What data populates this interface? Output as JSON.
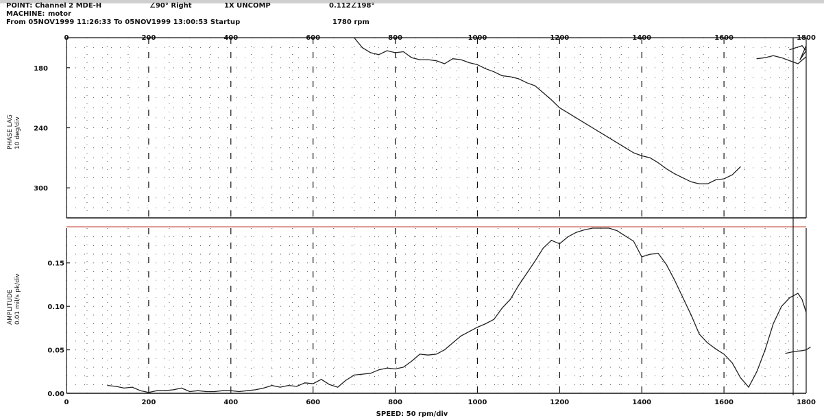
{
  "header": {
    "point_label": "POINT:",
    "point_value": "Channel 2 MDE-H",
    "angle": "∠90° Right",
    "mode": "1X UNCOMP",
    "vector": "0.112∠198°",
    "machine_label": "MACHINE:",
    "machine_value": "motor",
    "range": "From 05NOV1999 11:26:33 To 05NOV1999 13:00:53 Startup",
    "rpm": "1780 rpm"
  },
  "colors": {
    "grid": "#111111",
    "trace": "#222222",
    "panel_divider": "#c0392b",
    "frame": "#111111"
  },
  "chart_data": [
    {
      "type": "line",
      "panel": "phase",
      "ylabel": "PHASE LAG\n10 deg/div",
      "y_inverted": true,
      "ylim": [
        150,
        330
      ],
      "xlim": [
        0,
        1800
      ],
      "x_ticks": [
        "0",
        "200",
        "400",
        "600",
        "800",
        "1000",
        "1200",
        "1400",
        "1600",
        "1800"
      ],
      "y_ticks": [
        "180",
        "240",
        "300"
      ],
      "series": [
        {
          "points": [
            [
              700,
              150
            ],
            [
              720,
              160
            ],
            [
              740,
              165
            ],
            [
              760,
              167
            ],
            [
              780,
              163
            ],
            [
              800,
              165
            ],
            [
              820,
              164
            ],
            [
              840,
              170
            ],
            [
              860,
              172
            ],
            [
              880,
              172
            ],
            [
              900,
              173
            ],
            [
              920,
              176
            ],
            [
              940,
              171
            ],
            [
              960,
              172
            ],
            [
              980,
              175
            ],
            [
              1000,
              177
            ],
            [
              1020,
              181
            ],
            [
              1040,
              184
            ],
            [
              1060,
              188
            ],
            [
              1080,
              189
            ],
            [
              1100,
              191
            ],
            [
              1120,
              195
            ],
            [
              1140,
              198
            ],
            [
              1160,
              205
            ],
            [
              1180,
              212
            ],
            [
              1200,
              220
            ],
            [
              1220,
              225
            ],
            [
              1240,
              230
            ],
            [
              1260,
              235
            ],
            [
              1280,
              240
            ],
            [
              1300,
              245
            ],
            [
              1320,
              250
            ],
            [
              1340,
              255
            ],
            [
              1360,
              260
            ],
            [
              1380,
              265
            ],
            [
              1400,
              268
            ],
            [
              1420,
              270
            ],
            [
              1440,
              275
            ],
            [
              1460,
              281
            ],
            [
              1480,
              286
            ],
            [
              1500,
              290
            ],
            [
              1520,
              294
            ],
            [
              1540,
              296
            ],
            [
              1560,
              296
            ],
            [
              1580,
              292
            ],
            [
              1600,
              291
            ],
            [
              1620,
              287
            ],
            [
              1640,
              279
            ]
          ]
        },
        {
          "points": [
            [
              1680,
              171
            ],
            [
              1700,
              170
            ],
            [
              1720,
              168
            ],
            [
              1740,
              170
            ],
            [
              1760,
              173
            ],
            [
              1780,
              176
            ],
            [
              1800,
              169
            ]
          ]
        },
        {
          "points": [
            [
              1760,
              162
            ],
            [
              1790,
              158
            ],
            [
              1800,
              163
            ],
            [
              1785,
              172
            ],
            [
              1800,
              158
            ]
          ]
        }
      ]
    },
    {
      "type": "line",
      "panel": "amplitude",
      "ylabel": "AMPLITUDE\n0.01 mil/s pk/div",
      "ylim": [
        0,
        0.19
      ],
      "xlim": [
        0,
        1800
      ],
      "xlabel": "SPEED: 50 rpm/div",
      "x_ticks": [
        "0",
        "200",
        "400",
        "600",
        "800",
        "1000",
        "1200",
        "1400",
        "1600",
        "1800"
      ],
      "y_ticks": [
        "0.00",
        "0.05",
        "0.10",
        "0.15"
      ],
      "series": [
        {
          "points": [
            [
              100,
              0.009
            ],
            [
              120,
              0.008
            ],
            [
              140,
              0.006
            ],
            [
              160,
              0.007
            ],
            [
              180,
              0.003
            ],
            [
              200,
              0.001
            ],
            [
              220,
              0.003
            ],
            [
              240,
              0.003
            ],
            [
              260,
              0.004
            ],
            [
              280,
              0.006
            ],
            [
              300,
              0.002
            ],
            [
              320,
              0.003
            ],
            [
              340,
              0.002
            ],
            [
              360,
              0.002
            ],
            [
              380,
              0.003
            ],
            [
              400,
              0.003
            ],
            [
              420,
              0.002
            ],
            [
              440,
              0.003
            ],
            [
              460,
              0.004
            ],
            [
              480,
              0.006
            ],
            [
              500,
              0.009
            ],
            [
              520,
              0.007
            ],
            [
              540,
              0.009
            ],
            [
              560,
              0.008
            ],
            [
              580,
              0.012
            ],
            [
              600,
              0.011
            ],
            [
              620,
              0.016
            ],
            [
              640,
              0.01
            ],
            [
              660,
              0.007
            ],
            [
              680,
              0.015
            ],
            [
              700,
              0.021
            ],
            [
              720,
              0.022
            ],
            [
              740,
              0.023
            ],
            [
              760,
              0.027
            ],
            [
              780,
              0.029
            ],
            [
              800,
              0.028
            ],
            [
              820,
              0.03
            ],
            [
              840,
              0.037
            ],
            [
              860,
              0.045
            ],
            [
              880,
              0.044
            ],
            [
              900,
              0.045
            ],
            [
              920,
              0.05
            ],
            [
              940,
              0.058
            ],
            [
              960,
              0.066
            ],
            [
              980,
              0.071
            ],
            [
              1000,
              0.076
            ],
            [
              1020,
              0.08
            ],
            [
              1040,
              0.085
            ],
            [
              1060,
              0.098
            ],
            [
              1080,
              0.108
            ],
            [
              1100,
              0.124
            ],
            [
              1120,
              0.138
            ],
            [
              1140,
              0.152
            ],
            [
              1160,
              0.167
            ],
            [
              1180,
              0.176
            ],
            [
              1200,
              0.172
            ],
            [
              1220,
              0.18
            ],
            [
              1240,
              0.185
            ],
            [
              1260,
              0.188
            ],
            [
              1280,
              0.19
            ],
            [
              1300,
              0.19
            ],
            [
              1320,
              0.19
            ],
            [
              1340,
              0.187
            ],
            [
              1360,
              0.181
            ],
            [
              1380,
              0.175
            ],
            [
              1400,
              0.157
            ],
            [
              1420,
              0.16
            ],
            [
              1440,
              0.161
            ],
            [
              1460,
              0.148
            ],
            [
              1480,
              0.13
            ],
            [
              1500,
              0.11
            ],
            [
              1520,
              0.09
            ],
            [
              1540,
              0.068
            ],
            [
              1560,
              0.058
            ],
            [
              1580,
              0.051
            ],
            [
              1600,
              0.045
            ],
            [
              1620,
              0.035
            ],
            [
              1640,
              0.018
            ],
            [
              1660,
              0.007
            ],
            [
              1680,
              0.025
            ],
            [
              1700,
              0.05
            ],
            [
              1720,
              0.08
            ],
            [
              1740,
              0.1
            ],
            [
              1760,
              0.11
            ],
            [
              1780,
              0.115
            ],
            [
              1790,
              0.108
            ],
            [
              1800,
              0.093
            ]
          ]
        },
        {
          "points": [
            [
              1750,
              0.046
            ],
            [
              1770,
              0.048
            ],
            [
              1790,
              0.049
            ],
            [
              1800,
              0.05
            ],
            [
              1810,
              0.053
            ]
          ]
        }
      ]
    }
  ]
}
